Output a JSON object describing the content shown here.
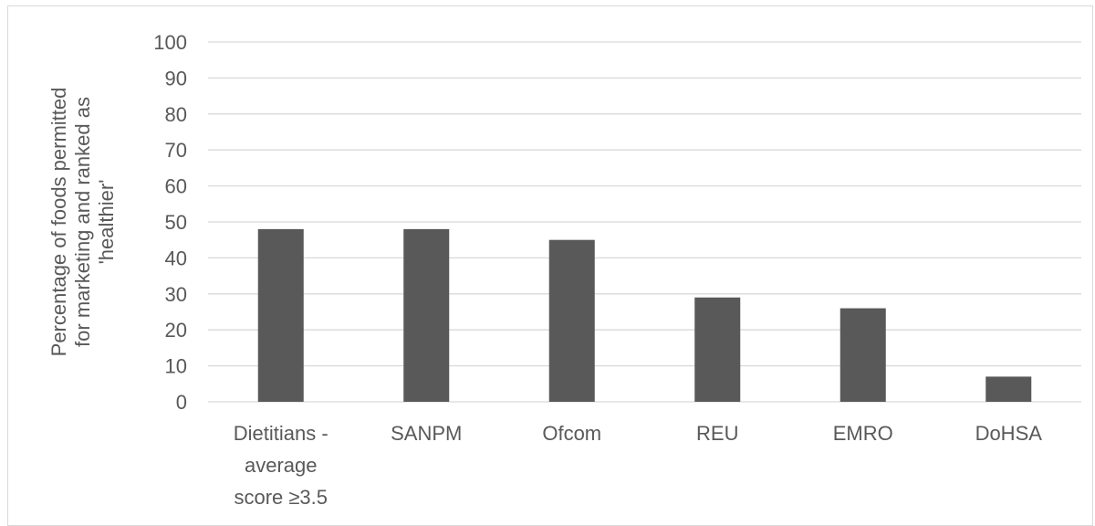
{
  "chart_data": {
    "type": "bar",
    "categories": [
      "Dietitians - average score ≥3.5",
      "SANPM",
      "Ofcom",
      "REU",
      "EMRO",
      "DoHSA"
    ],
    "category_lines": [
      [
        "Dietitians -",
        "average",
        "score ≥3.5"
      ],
      [
        "SANPM"
      ],
      [
        "Ofcom"
      ],
      [
        "REU"
      ],
      [
        "EMRO"
      ],
      [
        "DoHSA"
      ]
    ],
    "values": [
      48,
      48,
      45,
      29,
      26,
      7
    ],
    "title": "",
    "xlabel": "",
    "ylabel": "Percentage of foods permitted for marketing and ranked as 'healthier'",
    "ylabel_lines": [
      "Percentage of foods permitted",
      "for marketing and ranked as",
      "'healthier'"
    ],
    "ylim": [
      0,
      100
    ],
    "yticks": [
      0,
      10,
      20,
      30,
      40,
      50,
      60,
      70,
      80,
      90,
      100
    ],
    "grid": true,
    "legend": "none",
    "colors": {
      "bar": "#595959",
      "grid": "#d9d9d9",
      "axis": "#d9d9d9",
      "text": "#595959"
    }
  }
}
